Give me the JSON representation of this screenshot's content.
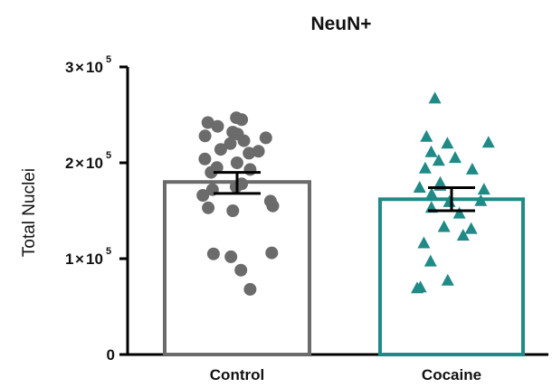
{
  "chart_data": {
    "type": "bar",
    "title": "NeuN+",
    "ylabel": "Total Nuclei",
    "xlabel": "",
    "ylim": [
      0,
      300000
    ],
    "y_ticks": [
      {
        "value": 0,
        "mantissa": "0",
        "times": "",
        "base": "",
        "exponent": ""
      },
      {
        "value": 100000,
        "mantissa": "1",
        "times": "×",
        "base": "10",
        "exponent": "5"
      },
      {
        "value": 200000,
        "mantissa": "2",
        "times": "×",
        "base": "10",
        "exponent": "5"
      },
      {
        "value": 300000,
        "mantissa": "3",
        "times": "×",
        "base": "10",
        "exponent": "5"
      }
    ],
    "categories": [
      "Control",
      "Cocaine"
    ],
    "colors": {
      "Control": "#6b6b6b",
      "Cocaine": "#1f8a86",
      "axis": "#000000",
      "errorbar": "#000000"
    },
    "series": [
      {
        "category": "Control",
        "marker": "circle",
        "mean": 180000,
        "sem_low": 168000,
        "sem_high": 190000,
        "points": [
          247000,
          245000,
          242000,
          238000,
          232000,
          230000,
          228000,
          226000,
          223000,
          220000,
          214000,
          212000,
          210000,
          204000,
          200000,
          195000,
          193000,
          190000,
          178000,
          175000,
          172000,
          166000,
          160000,
          155000,
          153000,
          150000,
          106000,
          105000,
          102000,
          88000,
          68000
        ]
      },
      {
        "category": "Cocaine",
        "marker": "triangle",
        "mean": 162000,
        "sem_low": 150000,
        "sem_high": 174000,
        "points": [
          268000,
          228000,
          222000,
          221000,
          212000,
          206000,
          203000,
          195000,
          194000,
          180000,
          177000,
          175000,
          173000,
          168000,
          161000,
          160000,
          154000,
          148000,
          134000,
          132000,
          125000,
          117000,
          98000,
          78000,
          71000,
          70000
        ]
      }
    ]
  }
}
